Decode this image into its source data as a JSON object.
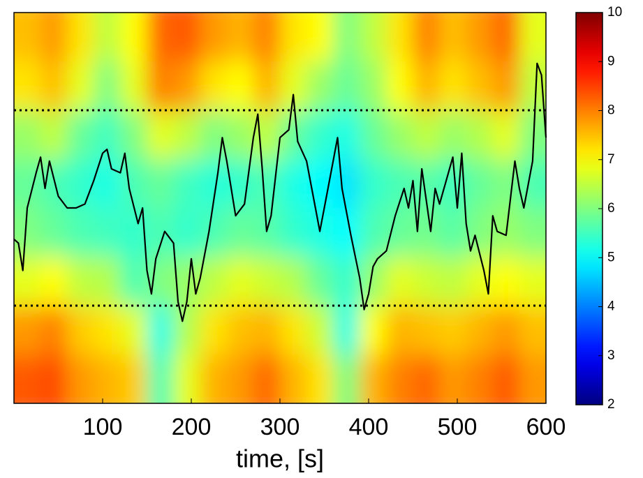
{
  "chart_data": {
    "type": "heatmap",
    "xlabel": "time, [s]",
    "xlim": [
      0,
      600
    ],
    "xticks": [
      100,
      200,
      300,
      400,
      500,
      600
    ],
    "ylim": [
      0,
      1
    ],
    "heatmap": {
      "clim": [
        2,
        10
      ],
      "cticks": [
        2,
        3,
        4,
        5,
        6,
        7,
        8,
        9,
        10
      ],
      "z": [
        [
          7.5,
          7.8,
          7.2,
          6.5,
          7.0,
          8.2,
          8.3,
          7.8,
          7.6,
          8.0,
          7.2,
          7.0,
          6.0,
          6.5,
          7.2,
          8.0,
          7.5,
          7.8,
          8.2,
          6.8
        ],
        [
          7.2,
          7.5,
          6.8,
          6.0,
          6.8,
          8.0,
          7.8,
          7.2,
          7.0,
          7.6,
          6.8,
          6.2,
          5.8,
          6.2,
          7.0,
          7.6,
          7.2,
          7.5,
          7.8,
          6.5
        ],
        [
          6.2,
          6.5,
          5.8,
          5.5,
          6.0,
          6.8,
          6.5,
          6.0,
          6.2,
          6.5,
          5.8,
          5.4,
          5.2,
          5.8,
          6.2,
          6.5,
          6.2,
          6.4,
          6.8,
          6.0
        ],
        [
          5.8,
          5.6,
          5.4,
          5.2,
          5.6,
          5.8,
          5.5,
          5.3,
          5.4,
          5.6,
          5.2,
          5.0,
          4.8,
          5.4,
          5.6,
          5.7,
          5.5,
          5.8,
          6.0,
          5.6
        ],
        [
          6.0,
          5.8,
          5.6,
          5.5,
          5.4,
          5.6,
          5.4,
          5.6,
          5.8,
          5.7,
          5.4,
          5.2,
          5.0,
          5.6,
          5.8,
          5.9,
          5.7,
          6.0,
          6.2,
          6.0
        ],
        [
          6.8,
          7.0,
          6.5,
          6.4,
          5.6,
          6.0,
          6.2,
          6.5,
          6.8,
          6.6,
          6.4,
          5.8,
          5.4,
          6.2,
          6.8,
          6.6,
          6.5,
          6.8,
          7.0,
          6.8
        ],
        [
          7.8,
          8.0,
          7.4,
          7.2,
          6.8,
          5.2,
          6.4,
          7.2,
          7.5,
          7.6,
          7.2,
          6.6,
          5.2,
          7.0,
          7.6,
          7.5,
          7.4,
          7.6,
          7.8,
          7.5
        ],
        [
          8.3,
          8.4,
          7.8,
          7.6,
          7.4,
          5.6,
          6.8,
          7.6,
          7.8,
          8.2,
          7.6,
          7.2,
          6.0,
          7.6,
          8.0,
          8.2,
          7.8,
          8.0,
          8.3,
          7.8
        ]
      ]
    },
    "line": {
      "color": "#000000",
      "x": [
        0,
        5,
        10,
        15,
        25,
        30,
        35,
        40,
        50,
        60,
        70,
        80,
        90,
        100,
        105,
        110,
        120,
        125,
        130,
        140,
        145,
        150,
        155,
        160,
        170,
        180,
        185,
        190,
        195,
        200,
        205,
        210,
        220,
        230,
        235,
        240,
        250,
        260,
        270,
        275,
        280,
        285,
        290,
        300,
        310,
        315,
        320,
        330,
        340,
        345,
        350,
        360,
        365,
        370,
        380,
        390,
        395,
        400,
        405,
        410,
        420,
        430,
        440,
        445,
        450,
        455,
        460,
        470,
        475,
        480,
        490,
        495,
        500,
        505,
        510,
        515,
        520,
        530,
        535,
        540,
        545,
        555,
        565,
        570,
        575,
        585,
        590,
        595,
        600
      ],
      "values": [
        0.42,
        0.41,
        0.34,
        0.5,
        0.59,
        0.63,
        0.55,
        0.62,
        0.53,
        0.5,
        0.5,
        0.51,
        0.57,
        0.64,
        0.65,
        0.6,
        0.59,
        0.64,
        0.55,
        0.46,
        0.5,
        0.34,
        0.28,
        0.37,
        0.44,
        0.41,
        0.26,
        0.21,
        0.26,
        0.37,
        0.28,
        0.32,
        0.44,
        0.59,
        0.68,
        0.62,
        0.48,
        0.51,
        0.68,
        0.74,
        0.6,
        0.44,
        0.48,
        0.68,
        0.7,
        0.79,
        0.67,
        0.62,
        0.5,
        0.44,
        0.5,
        0.62,
        0.68,
        0.55,
        0.43,
        0.32,
        0.24,
        0.28,
        0.35,
        0.37,
        0.39,
        0.48,
        0.55,
        0.5,
        0.57,
        0.44,
        0.6,
        0.44,
        0.55,
        0.51,
        0.59,
        0.63,
        0.5,
        0.64,
        0.46,
        0.39,
        0.43,
        0.34,
        0.28,
        0.48,
        0.44,
        0.43,
        0.62,
        0.55,
        0.5,
        0.62,
        0.87,
        0.84,
        0.68
      ]
    },
    "hlines": [
      0.25,
      0.75
    ]
  }
}
